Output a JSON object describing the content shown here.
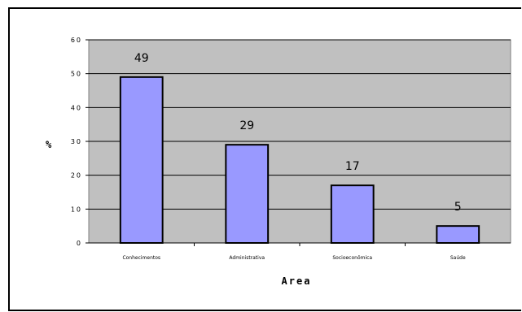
{
  "chart_data": {
    "type": "bar",
    "categories": [
      "Conhecimentos",
      "Administrativa",
      "Socioeconômica",
      "Saúde"
    ],
    "values": [
      49,
      29,
      17,
      5
    ],
    "data_labels": [
      "49",
      "29",
      "17",
      "5"
    ],
    "yticks": [
      "0",
      "10",
      "20",
      "30",
      "40",
      "50",
      "60"
    ],
    "ylim": [
      0,
      60
    ],
    "xlabel": "Area",
    "ylabel": "%",
    "grid": true,
    "plot_bg": "#c0c0c0",
    "bar_color": "#9999ff",
    "bar_edge": "#000000"
  }
}
